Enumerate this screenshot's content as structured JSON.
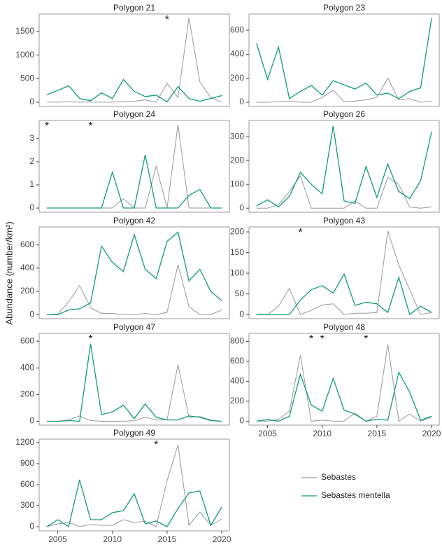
{
  "ylabel": "Abundance (number/km²)",
  "legend": [
    {
      "name": "Sebastes",
      "color": "#999999"
    },
    {
      "name": "Sebastes mentella",
      "color": "#109d72"
    }
  ],
  "chart_data": [
    {
      "type": "line",
      "title": "Polygon 21",
      "x": [
        2004,
        2005,
        2006,
        2007,
        2008,
        2009,
        2010,
        2011,
        2012,
        2013,
        2014,
        2015,
        2016,
        2017,
        2018,
        2019,
        2020
      ],
      "xlim": [
        2003.3,
        2020.7
      ],
      "ylim": [
        -90,
        1870
      ],
      "yticks": [
        0,
        500,
        1000,
        1500
      ],
      "series": [
        {
          "values": [
            5,
            0,
            10,
            0,
            5,
            0,
            0,
            20,
            20,
            50,
            0,
            400,
            100,
            1790,
            430,
            100,
            0
          ]
        },
        {
          "values": [
            160,
            250,
            350,
            80,
            30,
            200,
            80,
            480,
            230,
            120,
            150,
            10,
            330,
            80,
            20,
            80,
            140
          ]
        }
      ],
      "annotations": [
        {
          "x": 2015,
          "text": "*"
        }
      ]
    },
    {
      "type": "line",
      "title": "Polygon 23",
      "x": [
        2004,
        2005,
        2006,
        2007,
        2008,
        2009,
        2010,
        2011,
        2012,
        2013,
        2014,
        2015,
        2016,
        2017,
        2018,
        2019,
        2020
      ],
      "xlim": [
        2003.3,
        2020.7
      ],
      "ylim": [
        -35,
        735
      ],
      "yticks": [
        0,
        200,
        400,
        600
      ],
      "series": [
        {
          "values": [
            0,
            0,
            5,
            10,
            0,
            0,
            40,
            100,
            5,
            10,
            20,
            40,
            200,
            20,
            30,
            0,
            10
          ]
        },
        {
          "values": [
            490,
            190,
            460,
            30,
            90,
            140,
            60,
            180,
            145,
            110,
            160,
            60,
            75,
            30,
            90,
            120,
            700
          ]
        }
      ]
    },
    {
      "type": "line",
      "title": "Polygon 24",
      "x": [
        2004,
        2005,
        2006,
        2007,
        2008,
        2009,
        2010,
        2011,
        2012,
        2013,
        2014,
        2015,
        2016,
        2017,
        2018,
        2019,
        2020
      ],
      "xlim": [
        2003.3,
        2020.7
      ],
      "ylim": [
        -0.18,
        3.78
      ],
      "yticks": [
        0,
        1,
        2,
        3
      ],
      "series": [
        {
          "values": [
            0,
            0,
            0,
            0,
            0,
            0,
            0,
            0.4,
            0,
            0,
            1.8,
            0,
            3.6,
            0,
            0,
            0,
            0
          ]
        },
        {
          "values": [
            0,
            0,
            0,
            0,
            0,
            0,
            1.55,
            0,
            0,
            2.3,
            0,
            0,
            0,
            0.55,
            0.8,
            0,
            0
          ]
        }
      ],
      "annotations": [
        {
          "x": 2004,
          "text": "*"
        },
        {
          "x": 2008,
          "text": "*"
        }
      ]
    },
    {
      "type": "line",
      "title": "Polygon 26",
      "x": [
        2004,
        2005,
        2006,
        2007,
        2008,
        2009,
        2010,
        2011,
        2012,
        2013,
        2014,
        2015,
        2016,
        2017,
        2018,
        2019,
        2020
      ],
      "xlim": [
        2003.3,
        2020.7
      ],
      "ylim": [
        -17,
        368
      ],
      "yticks": [
        0,
        100,
        200,
        300
      ],
      "series": [
        {
          "values": [
            0,
            0,
            15,
            70,
            135,
            0,
            0,
            0,
            0,
            30,
            0,
            0,
            130,
            100,
            5,
            0,
            5
          ]
        },
        {
          "values": [
            10,
            35,
            5,
            50,
            150,
            100,
            60,
            345,
            30,
            20,
            175,
            45,
            185,
            70,
            40,
            115,
            320
          ]
        }
      ]
    },
    {
      "type": "line",
      "title": "Polygon 42",
      "x": [
        2004,
        2005,
        2006,
        2007,
        2008,
        2009,
        2010,
        2011,
        2012,
        2013,
        2014,
        2015,
        2016,
        2017,
        2018,
        2019,
        2020
      ],
      "xlim": [
        2003.3,
        2020.7
      ],
      "ylim": [
        -35,
        755
      ],
      "yticks": [
        0,
        200,
        400,
        600
      ],
      "series": [
        {
          "values": [
            0,
            5,
            110,
            250,
            60,
            10,
            10,
            0,
            0,
            10,
            0,
            20,
            430,
            70,
            0,
            0,
            40
          ]
        },
        {
          "values": [
            0,
            0,
            40,
            50,
            100,
            590,
            450,
            370,
            690,
            390,
            310,
            630,
            710,
            290,
            390,
            200,
            120
          ]
        }
      ]
    },
    {
      "type": "line",
      "title": "Polygon 43",
      "x": [
        2004,
        2005,
        2006,
        2007,
        2008,
        2009,
        2010,
        2011,
        2012,
        2013,
        2014,
        2015,
        2016,
        2017,
        2018,
        2019,
        2020
      ],
      "xlim": [
        2003.3,
        2020.7
      ],
      "ylim": [
        -10,
        212
      ],
      "yticks": [
        0,
        50,
        100,
        150,
        200
      ],
      "series": [
        {
          "values": [
            0,
            0,
            20,
            63,
            0,
            10,
            23,
            26,
            0,
            3,
            3,
            5,
            202,
            120,
            60,
            0,
            5
          ]
        },
        {
          "values": [
            1,
            0,
            0,
            0,
            35,
            60,
            70,
            52,
            98,
            22,
            30,
            26,
            5,
            90,
            0,
            20,
            5
          ]
        }
      ],
      "annotations": [
        {
          "x": 2008,
          "text": "*"
        }
      ]
    },
    {
      "type": "line",
      "title": "Polygon 47",
      "x": [
        2004,
        2005,
        2006,
        2007,
        2008,
        2009,
        2010,
        2011,
        2012,
        2013,
        2014,
        2015,
        2016,
        2017,
        2018,
        2019,
        2020
      ],
      "xlim": [
        2003.3,
        2020.7
      ],
      "ylim": [
        -29,
        659
      ],
      "yticks": [
        0,
        200,
        400,
        600
      ],
      "series": [
        {
          "values": [
            0,
            0,
            10,
            40,
            5,
            0,
            0,
            0,
            5,
            30,
            10,
            10,
            425,
            30,
            35,
            10,
            0
          ]
        },
        {
          "values": [
            0,
            0,
            5,
            0,
            580,
            50,
            70,
            120,
            20,
            130,
            30,
            10,
            10,
            40,
            30,
            5,
            0
          ]
        }
      ],
      "annotations": [
        {
          "x": 2008,
          "text": "*"
        }
      ]
    },
    {
      "type": "line",
      "title": "Polygon 48",
      "x": [
        2004,
        2005,
        2006,
        2007,
        2008,
        2009,
        2010,
        2011,
        2012,
        2013,
        2014,
        2015,
        2016,
        2017,
        2018,
        2019,
        2020
      ],
      "xlim": [
        2003.3,
        2020.7
      ],
      "xticks": [
        2005,
        2010,
        2015,
        2020
      ],
      "ylim": [
        -40,
        880
      ],
      "yticks": [
        0,
        200,
        400,
        600,
        800
      ],
      "series": [
        {
          "values": [
            0,
            0,
            20,
            100,
            660,
            0,
            10,
            0,
            0,
            80,
            0,
            50,
            770,
            0,
            70,
            0,
            40
          ]
        },
        {
          "values": [
            0,
            15,
            0,
            50,
            470,
            160,
            100,
            430,
            110,
            70,
            0,
            20,
            10,
            490,
            290,
            10,
            50
          ]
        }
      ],
      "annotations": [
        {
          "x": 2009,
          "text": "*"
        },
        {
          "x": 2010,
          "text": "*"
        },
        {
          "x": 2014,
          "text": "*"
        }
      ]
    },
    {
      "type": "line",
      "title": "Polygon 49",
      "x": [
        2004,
        2005,
        2006,
        2007,
        2008,
        2009,
        2010,
        2011,
        2012,
        2013,
        2014,
        2015,
        2016,
        2017,
        2018,
        2019,
        2020
      ],
      "xlim": [
        2003.3,
        2020.7
      ],
      "xticks": [
        2005,
        2010,
        2015,
        2020
      ],
      "ylim": [
        -60,
        1250
      ],
      "yticks": [
        0,
        300,
        600,
        900,
        1200
      ],
      "series": [
        {
          "values": [
            0,
            40,
            60,
            0,
            30,
            20,
            20,
            100,
            60,
            80,
            0,
            660,
            1170,
            20,
            210,
            20,
            110
          ]
        },
        {
          "values": [
            0,
            100,
            0,
            670,
            100,
            100,
            200,
            230,
            470,
            40,
            80,
            0,
            260,
            480,
            510,
            20,
            280
          ]
        }
      ],
      "annotations": [
        {
          "x": 2014,
          "text": "*"
        }
      ]
    }
  ]
}
